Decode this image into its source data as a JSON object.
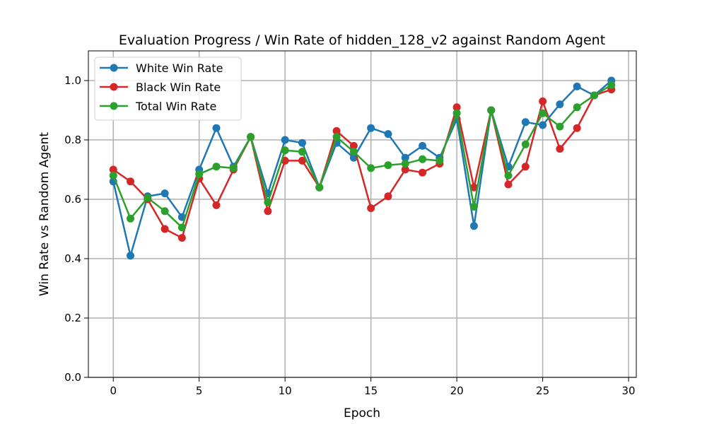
{
  "chart_data": {
    "type": "line",
    "title": "Evaluation Progress / Win Rate of hidden_128_v2 against Random Agent",
    "xlabel": "Epoch",
    "ylabel": "Win Rate vs Random Agent",
    "xlim": [
      -1.45,
      30.45
    ],
    "ylim": [
      0.0,
      1.1
    ],
    "xticks": [
      0,
      5,
      10,
      15,
      20,
      25,
      30
    ],
    "yticks": [
      0.0,
      0.2,
      0.4,
      0.6,
      0.8,
      1.0
    ],
    "xtick_labels": [
      "0",
      "5",
      "10",
      "15",
      "20",
      "25",
      "30"
    ],
    "ytick_labels": [
      "0.0",
      "0.2",
      "0.4",
      "0.6",
      "0.8",
      "1.0"
    ],
    "grid": true,
    "legend_position": "top-left",
    "x": [
      0,
      1,
      2,
      3,
      4,
      5,
      6,
      7,
      8,
      9,
      10,
      11,
      12,
      13,
      14,
      15,
      16,
      17,
      18,
      19,
      20,
      21,
      22,
      23,
      24,
      25,
      26,
      27,
      28,
      29
    ],
    "series": [
      {
        "name": "White Win Rate",
        "color": "#1f77b4",
        "values": [
          0.66,
          0.41,
          0.61,
          0.62,
          0.54,
          0.7,
          0.84,
          0.71,
          0.81,
          0.62,
          0.8,
          0.79,
          0.64,
          0.79,
          0.74,
          0.84,
          0.82,
          0.74,
          0.78,
          0.74,
          0.87,
          0.51,
          0.9,
          0.71,
          0.86,
          0.85,
          0.92,
          0.98,
          0.95,
          1.0
        ]
      },
      {
        "name": "Black Win Rate",
        "color": "#d62728",
        "values": [
          0.7,
          0.66,
          0.6,
          0.5,
          0.47,
          0.67,
          0.58,
          0.7,
          0.81,
          0.56,
          0.73,
          0.73,
          0.64,
          0.83,
          0.78,
          0.57,
          0.61,
          0.7,
          0.69,
          0.72,
          0.91,
          0.64,
          0.9,
          0.65,
          0.71,
          0.93,
          0.77,
          0.84,
          0.95,
          0.97
        ]
      },
      {
        "name": "Total Win Rate",
        "color": "#2ca02c",
        "values": [
          0.68,
          0.535,
          0.605,
          0.56,
          0.505,
          0.685,
          0.71,
          0.705,
          0.81,
          0.59,
          0.765,
          0.76,
          0.64,
          0.81,
          0.76,
          0.705,
          0.715,
          0.72,
          0.735,
          0.73,
          0.89,
          0.575,
          0.9,
          0.68,
          0.785,
          0.89,
          0.845,
          0.91,
          0.95,
          0.985
        ]
      }
    ]
  }
}
